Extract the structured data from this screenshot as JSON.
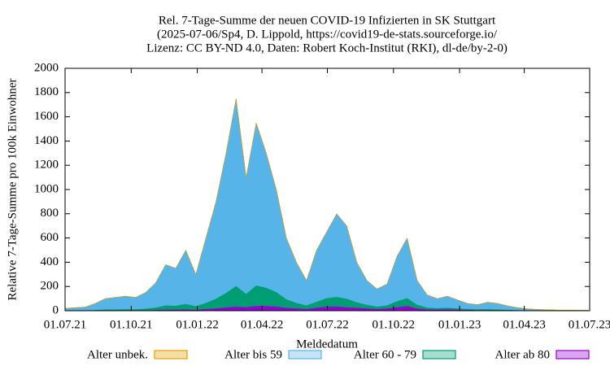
{
  "chart_data": {
    "type": "stacked-area",
    "title": [
      "Rel. 7-Tage-Summe der neuen COVID-19 Infizierten in SK Stuttgart",
      "(2025-07-06/Sp4, D. Lippold, https://covid19-de-stats.sourceforge.io/",
      "Lizenz: CC BY-ND 4.0, Daten: Robert Koch-Institut (RKI), dl-de/by-2-0)"
    ],
    "xlabel": "Meldedatum",
    "ylabel": "Relative 7-Tage-Summe pro 100k Einwohner",
    "x": [
      "2021-07-01",
      "2021-07-15",
      "2021-07-29",
      "2021-08-12",
      "2021-08-26",
      "2021-09-09",
      "2021-09-23",
      "2021-10-07",
      "2021-10-21",
      "2021-11-04",
      "2021-11-18",
      "2021-12-02",
      "2021-12-16",
      "2021-12-30",
      "2022-01-13",
      "2022-01-27",
      "2022-02-10",
      "2022-02-24",
      "2022-03-10",
      "2022-03-24",
      "2022-04-07",
      "2022-04-21",
      "2022-05-05",
      "2022-05-19",
      "2022-06-02",
      "2022-06-16",
      "2022-06-30",
      "2022-07-14",
      "2022-07-28",
      "2022-08-11",
      "2022-08-25",
      "2022-09-08",
      "2022-09-22",
      "2022-10-06",
      "2022-10-20",
      "2022-11-03",
      "2022-11-17",
      "2022-12-01",
      "2022-12-15",
      "2022-12-29",
      "2023-01-12",
      "2023-01-26",
      "2023-02-09",
      "2023-02-23",
      "2023-03-09",
      "2023-03-23",
      "2023-04-06",
      "2023-04-20",
      "2023-05-04",
      "2023-05-18",
      "2023-06-01",
      "2023-06-15",
      "2023-06-29"
    ],
    "series": [
      {
        "name": "Alter unbek.",
        "color": "#e69f00",
        "values": [
          0,
          0,
          0,
          0,
          0,
          0,
          0,
          0,
          0,
          0,
          0,
          0,
          0,
          0,
          0,
          0,
          0,
          0,
          0,
          0,
          0,
          0,
          0,
          0,
          0,
          0,
          0,
          0,
          0,
          0,
          0,
          0,
          0,
          0,
          0,
          0,
          0,
          0,
          0,
          0,
          0,
          0,
          0,
          0,
          0,
          0,
          0,
          0,
          0,
          0,
          0,
          0,
          0
        ]
      },
      {
        "name": "Alter bis 59",
        "color": "#56b4e9",
        "values": [
          17,
          22,
          26,
          53,
          89,
          98,
          106,
          97,
          132,
          203,
          335,
          308,
          443,
          262,
          535,
          800,
          1152,
          1545,
          960,
          1340,
          1110,
          845,
          505,
          335,
          205,
          425,
          545,
          685,
          600,
          330,
          200,
          145,
          175,
          370,
          495,
          200,
          103,
          78,
          94,
          70,
          44,
          37,
          56,
          48,
          31,
          19,
          11,
          8,
          6,
          3,
          2,
          2,
          2
        ]
      },
      {
        "name": "Alter 60 - 79",
        "color": "#009e73",
        "values": [
          2,
          2,
          3,
          5,
          8,
          9,
          10,
          9,
          13,
          20,
          35,
          32,
          45,
          30,
          50,
          80,
          120,
          170,
          110,
          170,
          150,
          120,
          70,
          45,
          30,
          50,
          70,
          80,
          70,
          45,
          30,
          20,
          25,
          50,
          65,
          30,
          15,
          12,
          14,
          10,
          8,
          7,
          8,
          7,
          5,
          3,
          2,
          1,
          1,
          1,
          1,
          0,
          0
        ]
      },
      {
        "name": "Alter ab 80",
        "color": "#9400d3",
        "values": [
          1,
          1,
          1,
          2,
          3,
          3,
          4,
          4,
          5,
          7,
          10,
          10,
          12,
          8,
          15,
          20,
          28,
          35,
          30,
          40,
          40,
          35,
          25,
          20,
          15,
          25,
          35,
          35,
          30,
          25,
          20,
          15,
          20,
          30,
          40,
          20,
          12,
          10,
          12,
          10,
          8,
          6,
          6,
          5,
          4,
          3,
          2,
          1,
          1,
          1,
          1,
          1,
          1
        ]
      }
    ],
    "xlim": [
      "2021-07-01",
      "2023-07-01"
    ],
    "xticks": [
      {
        "value": "2021-07-01",
        "label": "01.07.21"
      },
      {
        "value": "2021-10-01",
        "label": "01.10.21"
      },
      {
        "value": "2022-01-01",
        "label": "01.01.22"
      },
      {
        "value": "2022-04-01",
        "label": "01.04.22"
      },
      {
        "value": "2022-07-01",
        "label": "01.07.22"
      },
      {
        "value": "2022-10-01",
        "label": "01.10.22"
      },
      {
        "value": "2023-01-01",
        "label": "01.01.23"
      },
      {
        "value": "2023-04-01",
        "label": "01.04.23"
      },
      {
        "value": "2023-07-01",
        "label": "01.07.23"
      }
    ],
    "ylim": [
      0,
      2000
    ],
    "yticks": [
      0,
      200,
      400,
      600,
      800,
      1000,
      1200,
      1400,
      1600,
      1800,
      2000
    ]
  }
}
